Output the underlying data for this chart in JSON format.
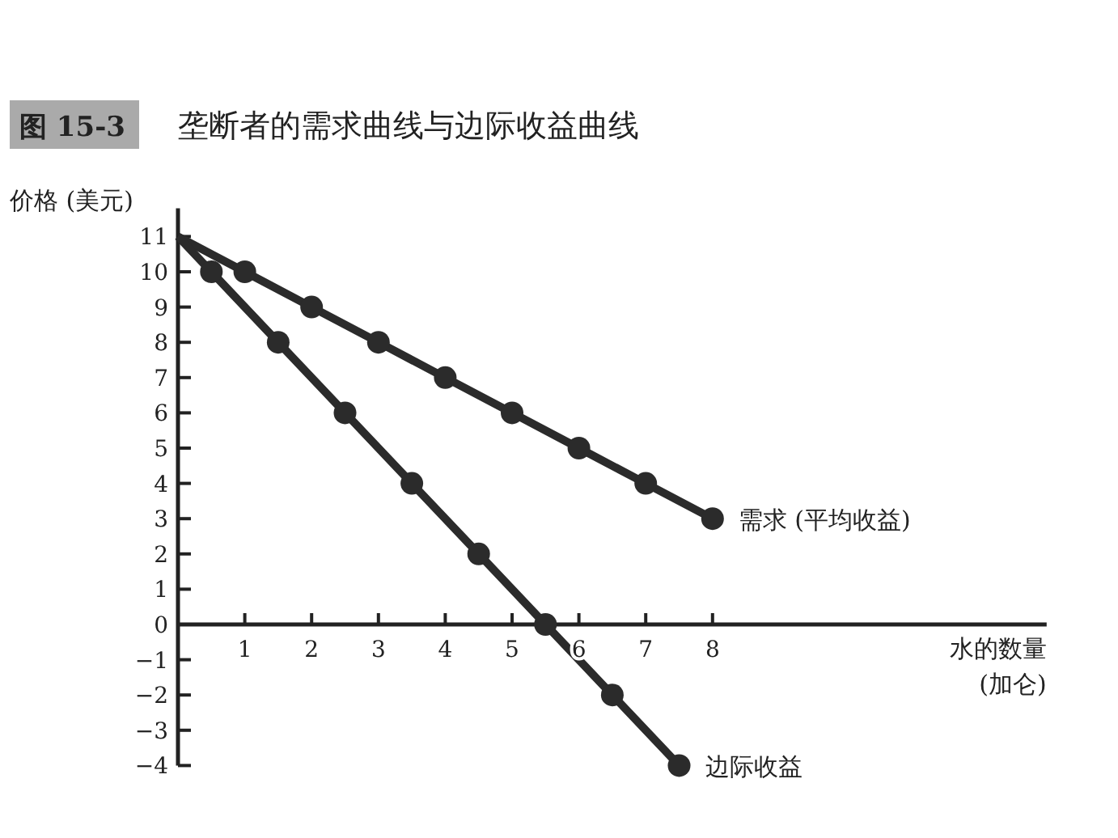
{
  "chart_data": {
    "type": "line",
    "title": "垄断者的需求曲线与边际收益曲线",
    "annotations": [
      "图 15-3"
    ],
    "xlabel": "水的数量 (加仑)",
    "ylabel": "价格 (美元)",
    "series": [
      {
        "name": "需求 (平均收益)",
        "color": "#2b2b2b",
        "x": [
          0,
          1,
          2,
          3,
          4,
          5,
          6,
          7,
          8
        ],
        "values": [
          11,
          10,
          9,
          8,
          7,
          6,
          5,
          4,
          3
        ]
      },
      {
        "name": "边际收益",
        "color": "#2b2b2b",
        "x": [
          0,
          0.5,
          1.5,
          2.5,
          3.5,
          4.5,
          5.5,
          6.5,
          7.5
        ],
        "values": [
          11,
          10,
          8,
          6,
          4,
          2,
          0,
          -2,
          -4
        ]
      }
    ],
    "xlim": [
      0,
      13
    ],
    "ylim": [
      -4,
      11.8
    ],
    "xticks": [
      1,
      2,
      3,
      4,
      5,
      6,
      7,
      8
    ],
    "yticks": [
      -4,
      -3,
      -2,
      -1,
      0,
      1,
      2,
      3,
      4,
      5,
      6,
      7,
      8,
      9,
      10,
      11
    ],
    "marker": "circle",
    "line_style": "solid"
  }
}
